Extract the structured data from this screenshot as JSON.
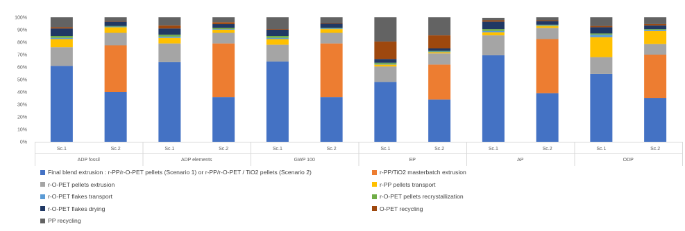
{
  "chart_data": {
    "type": "bar",
    "stacked": "percent",
    "title": "",
    "xlabel": "",
    "ylabel": "",
    "ylim": [
      0,
      100
    ],
    "y_ticks": [
      "0%",
      "10%",
      "20%",
      "30%",
      "40%",
      "50%",
      "60%",
      "70%",
      "80%",
      "90%",
      "100%"
    ],
    "grid": false,
    "legend_position": "bottom",
    "groups": [
      {
        "name": "ADP fossil",
        "categories": [
          "Sc.1",
          "Sc.2"
        ]
      },
      {
        "name": "ADP elements",
        "categories": [
          "Sc.1",
          "Sc.2"
        ]
      },
      {
        "name": "GWP 100",
        "categories": [
          "Sc.1",
          "Sc.2"
        ]
      },
      {
        "name": "EP",
        "categories": [
          "Sc.1",
          "Sc.2"
        ]
      },
      {
        "name": "AP",
        "categories": [
          "Sc.1",
          "Sc.2"
        ]
      },
      {
        "name": "ODP",
        "categories": [
          "Sc.1",
          "Sc.2"
        ]
      }
    ],
    "series": [
      {
        "name": "Final blend extrusion : r-PP/r-O-PET pellets (Scenario 1) or r-PP/r-O-PET / TiO2 pellets (Scenario 2)",
        "color": "#4472C4",
        "values": [
          61,
          40,
          64,
          36,
          64.5,
          36,
          48,
          34,
          69.5,
          39,
          54.5,
          35
        ]
      },
      {
        "name": "r-PP/TiO2 masterbatch extrusion",
        "color": "#ED7D31",
        "values": [
          0,
          37.5,
          0,
          43,
          0,
          43,
          0,
          28,
          0,
          43.5,
          0,
          35
        ]
      },
      {
        "name": "r-O-PET pellets extrusion",
        "color": "#A5A5A5",
        "values": [
          15,
          10,
          15,
          8.5,
          13.5,
          8.5,
          12.5,
          9,
          16,
          9,
          13.5,
          8.5
        ]
      },
      {
        "name": "r-PP pellets transport",
        "color": "#FFC000",
        "values": [
          6.5,
          4.5,
          4.5,
          2.5,
          4.5,
          3,
          1.5,
          1,
          2.5,
          1.5,
          16,
          10.5
        ]
      },
      {
        "name": "r-O-PET flakes transport",
        "color": "#5B9BD5",
        "values": [
          1,
          0.5,
          1,
          0.5,
          1,
          0.5,
          0.5,
          0.5,
          1,
          0.5,
          2,
          1
        ]
      },
      {
        "name": "r-O-PET pellets recrystallization",
        "color": "#70AD47",
        "values": [
          1.5,
          0.5,
          1.5,
          1,
          1.5,
          0.5,
          1,
          0.5,
          1.5,
          0.5,
          1,
          0.5
        ]
      },
      {
        "name": "r-O-PET flakes drying",
        "color": "#203864",
        "values": [
          6,
          3.5,
          5,
          3,
          5,
          3.5,
          3,
          2,
          6,
          3,
          5,
          3
        ]
      },
      {
        "name": "O-PET recycling",
        "color": "#9E480E",
        "values": [
          1,
          0.5,
          2.5,
          1.5,
          0.5,
          0.5,
          14,
          10.5,
          1,
          0.5,
          1,
          1
        ]
      },
      {
        "name": "PP recycling",
        "color": "#636363",
        "values": [
          8,
          3,
          6.5,
          4,
          9.5,
          4.5,
          19.5,
          14.5,
          2,
          2.5,
          7,
          5.5
        ]
      }
    ]
  }
}
